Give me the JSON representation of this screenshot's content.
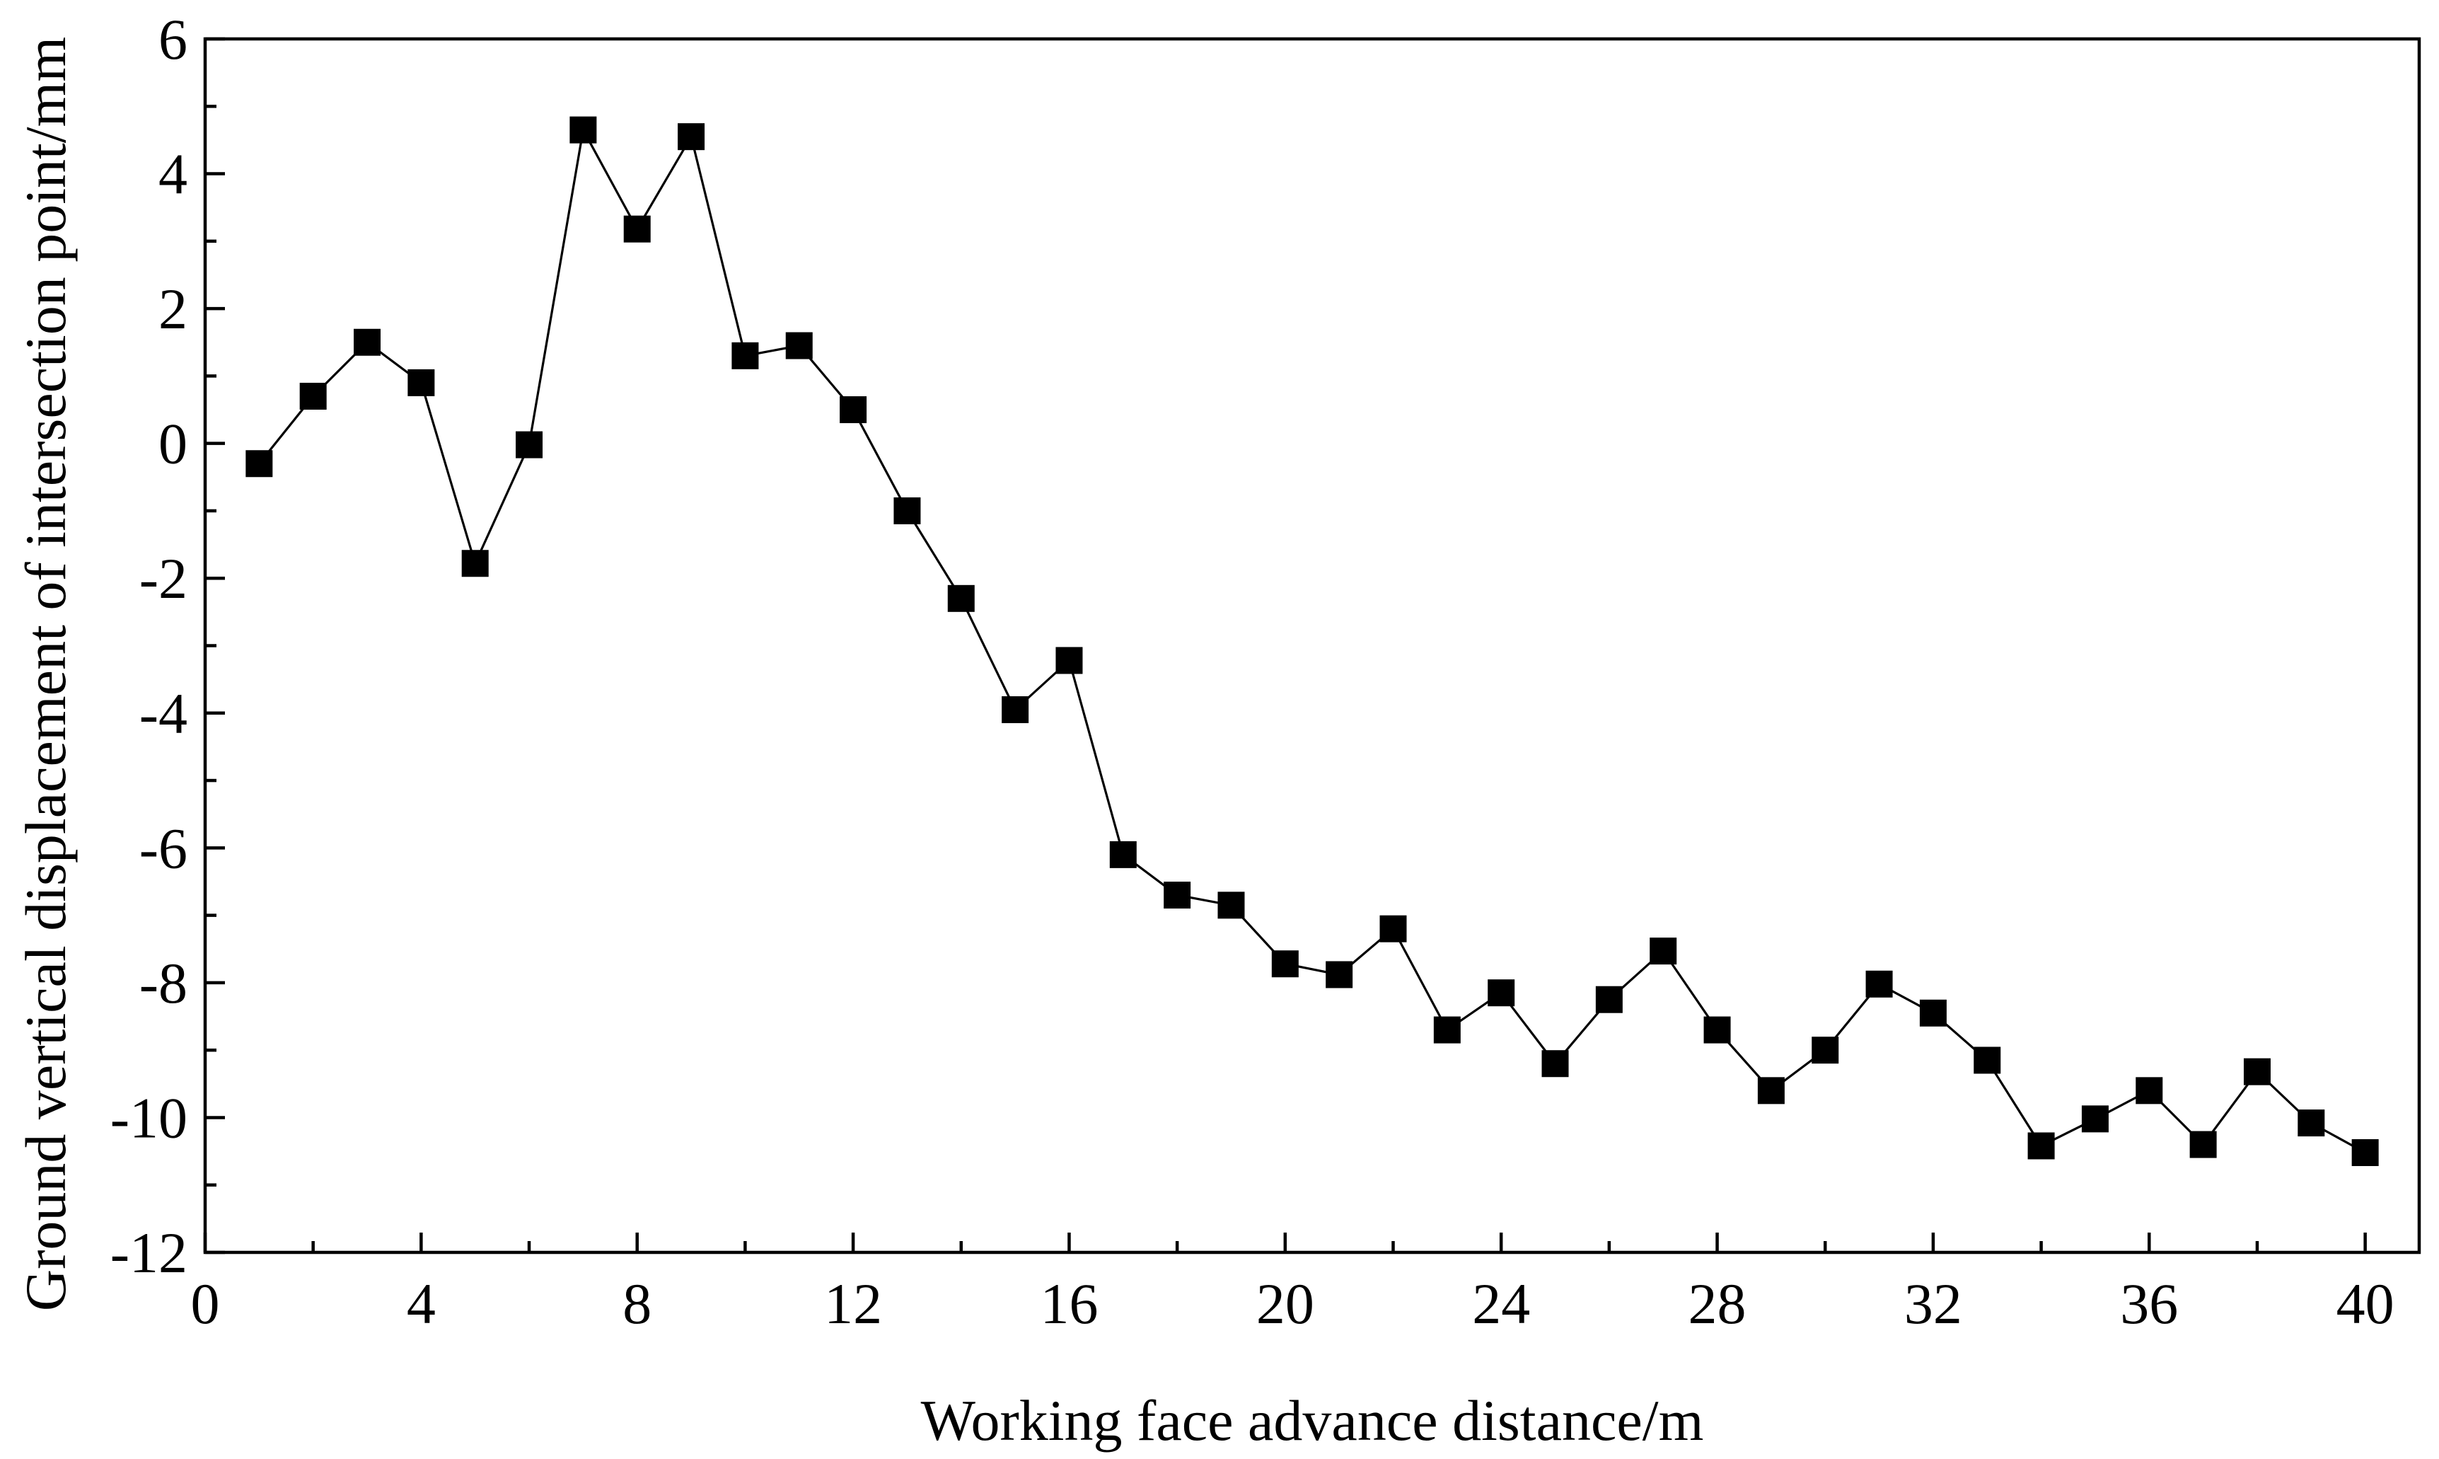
{
  "chart_data": {
    "type": "line",
    "title": "",
    "xlabel": "Working face advance distance/m",
    "ylabel": "Ground vertical displacement of intersection point/mm",
    "xlim": [
      0,
      41
    ],
    "ylim": [
      -12,
      6
    ],
    "xticks": [
      0,
      4,
      8,
      12,
      16,
      20,
      24,
      28,
      32,
      36,
      40
    ],
    "yticks": [
      6,
      4,
      2,
      0,
      -2,
      -4,
      -6,
      -8,
      -10,
      -12
    ],
    "xtick_labels": [
      "0",
      "4",
      "8",
      "12",
      "16",
      "20",
      "24",
      "28",
      "32",
      "36",
      "40"
    ],
    "ytick_labels": [
      "6",
      "4",
      "2",
      "0",
      "-2",
      "-4",
      "-6",
      "-8",
      "-10",
      "-12"
    ],
    "grid": false,
    "marker": "square",
    "line_color": "#000000",
    "marker_color": "#000000",
    "series": [
      {
        "x": [
          1,
          2,
          3,
          4,
          5,
          6,
          7,
          8,
          9,
          10,
          11,
          12,
          13,
          14,
          15,
          16,
          17,
          18,
          19,
          20,
          21,
          22,
          23,
          24,
          25,
          26,
          27,
          28,
          29,
          30,
          31,
          32,
          33,
          34,
          35,
          36,
          37,
          38,
          39,
          40
        ],
        "values": [
          -0.3,
          0.7,
          1.5,
          0.9,
          -1.78,
          -0.02,
          4.65,
          3.18,
          4.55,
          1.3,
          1.45,
          0.5,
          -1.0,
          -2.3,
          -3.95,
          -3.22,
          -6.1,
          -6.7,
          -6.85,
          -7.72,
          -7.88,
          -7.2,
          -8.7,
          -8.15,
          -9.2,
          -8.25,
          -7.53,
          -8.7,
          -9.6,
          -9.0,
          -8.02,
          -8.45,
          -9.15,
          -10.42,
          -10.02,
          -9.6,
          -10.4,
          -9.32,
          -10.08,
          -10.52
        ]
      }
    ]
  }
}
